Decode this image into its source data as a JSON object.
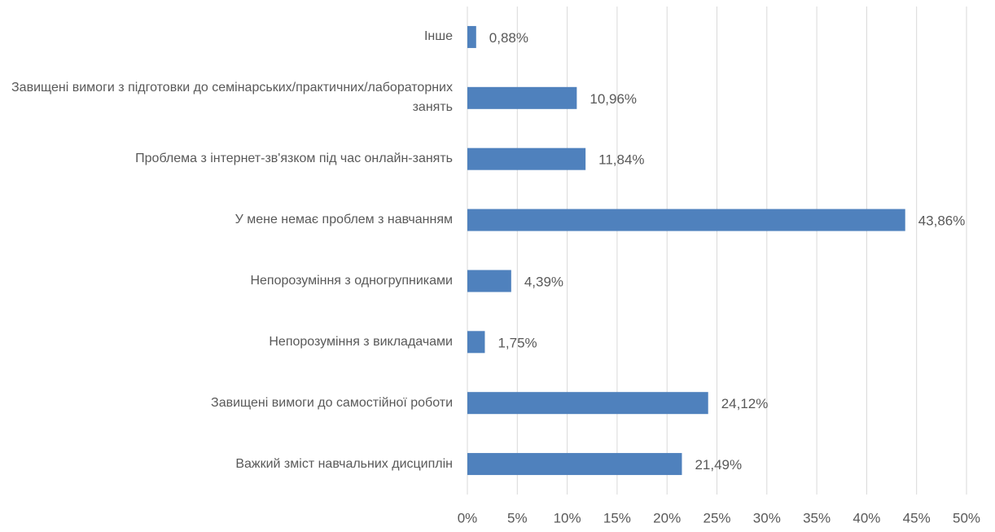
{
  "chart_data": {
    "type": "bar",
    "orientation": "horizontal",
    "categories": [
      "Інше",
      "Завищені вимоги з підготовки до семінарських/практичних/лабораторних занять",
      "Проблема з інтернет-зв'язком під час онлайн-занять",
      "У мене немає проблем з навчанням",
      "Непорозуміння з одногрупниками",
      "Непорозуміння з викладачами",
      "Завищені вимоги до самостійної роботи",
      "Важкий зміст навчальних дисциплін"
    ],
    "values": [
      0.88,
      10.96,
      11.84,
      43.86,
      4.39,
      1.75,
      24.12,
      21.49
    ],
    "value_labels": [
      "0,88%",
      "10,96%",
      "11,84%",
      "43,86%",
      "4,39%",
      "1,75%",
      "24,12%",
      "21,49%"
    ],
    "color": "#4f81bd",
    "xlim": [
      0,
      50
    ],
    "xticks": [
      {
        "value": 0,
        "label": "0%"
      },
      {
        "value": 5,
        "label": "5%"
      },
      {
        "value": 10,
        "label": "10%"
      },
      {
        "value": 15,
        "label": "15%"
      },
      {
        "value": 20,
        "label": "20%"
      },
      {
        "value": 25,
        "label": "25%"
      },
      {
        "value": 30,
        "label": "30%"
      },
      {
        "value": 35,
        "label": "35%"
      },
      {
        "value": 40,
        "label": "40%"
      },
      {
        "value": 45,
        "label": "45%"
      },
      {
        "value": 50,
        "label": "50%"
      }
    ],
    "grid": true
  }
}
